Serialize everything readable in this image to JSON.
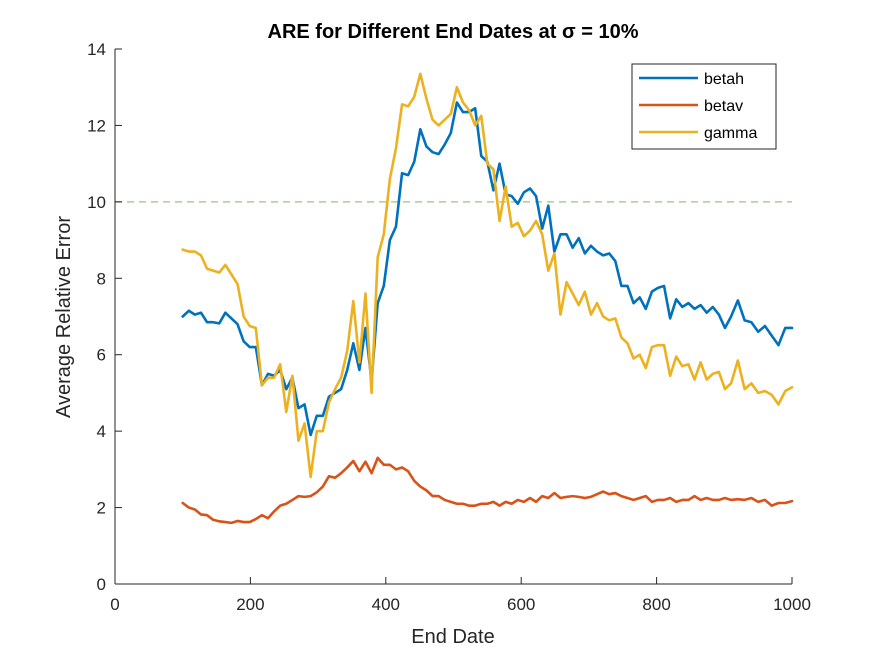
{
  "chart_data": {
    "type": "line",
    "title": "ARE for Different End Dates at σ = 10%",
    "xlabel": "End Date",
    "ylabel": "Average Relative Error",
    "xlim": [
      0,
      1000
    ],
    "ylim": [
      0,
      14
    ],
    "xticks": [
      0,
      200,
      400,
      600,
      800,
      1000
    ],
    "yticks": [
      0,
      2,
      4,
      6,
      8,
      10,
      12,
      14
    ],
    "grid": false,
    "legend_position": "top-right",
    "reference_line": {
      "y": 10,
      "color": "#A9D08E",
      "style": "dashed"
    },
    "x": [
      100,
      110,
      120,
      130,
      140,
      150,
      160,
      170,
      180,
      190,
      200,
      210,
      220,
      230,
      240,
      250,
      260,
      270,
      280,
      290,
      300,
      310,
      320,
      330,
      340,
      350,
      360,
      370,
      380,
      390,
      400,
      410,
      420,
      430,
      440,
      450,
      460,
      470,
      480,
      490,
      500,
      510,
      520,
      530,
      540,
      550,
      560,
      570,
      580,
      590,
      600,
      610,
      620,
      630,
      640,
      650,
      660,
      670,
      680,
      690,
      700,
      710,
      720,
      730,
      740,
      750,
      760,
      770,
      780,
      790,
      800,
      810,
      820,
      830,
      840,
      850,
      860,
      870,
      880,
      890,
      900,
      910,
      920,
      930,
      940,
      950,
      960,
      970,
      980,
      990,
      1000
    ],
    "series": [
      {
        "name": "betah",
        "color": "#0072BD",
        "values": [
          7.0,
          7.15,
          7.05,
          7.1,
          6.85,
          6.85,
          6.82,
          7.1,
          6.95,
          6.8,
          6.35,
          6.2,
          6.2,
          5.2,
          5.5,
          5.45,
          5.6,
          5.1,
          5.4,
          4.6,
          4.7,
          3.9,
          4.4,
          4.4,
          4.9,
          5.0,
          5.1,
          5.6,
          6.3,
          5.6,
          6.7,
          5.3,
          7.35,
          7.8,
          9.0,
          9.35,
          10.75,
          10.7,
          11.05,
          11.9,
          11.45,
          11.3,
          11.25,
          11.5,
          11.8,
          12.6,
          12.35,
          12.35,
          12.45,
          11.2,
          11.05,
          10.3,
          11.0,
          10.2,
          10.15,
          9.95,
          10.25,
          10.35,
          10.15,
          9.3,
          9.9,
          8.7,
          9.15,
          9.15,
          8.8,
          9.05,
          8.65,
          8.85,
          8.7,
          8.6,
          8.65,
          8.45,
          7.8,
          7.8,
          7.35,
          7.5,
          7.2,
          7.65,
          7.75,
          7.8,
          6.95,
          7.45,
          7.25,
          7.35,
          7.2,
          7.3,
          7.1,
          7.25,
          7.05,
          6.7,
          7.0
        ],
        "values_tail": [
          7.42,
          6.9,
          6.85,
          6.6,
          6.75,
          6.5,
          6.25,
          6.7,
          6.7
        ]
      },
      {
        "name": "betav",
        "color": "#D95319",
        "values": [
          2.12,
          2.0,
          1.95,
          1.82,
          1.8,
          1.68,
          1.64,
          1.62,
          1.6,
          1.65,
          1.62,
          1.62,
          1.7,
          1.8,
          1.72,
          1.9,
          2.05,
          2.1,
          2.2,
          2.3,
          2.28,
          2.3,
          2.4,
          2.55,
          2.82,
          2.78,
          2.9,
          3.05,
          3.22,
          2.95,
          3.2,
          2.9,
          3.3,
          3.12,
          3.12,
          3.0,
          3.05,
          2.95,
          2.7,
          2.55,
          2.45,
          2.3,
          2.3,
          2.2,
          2.15,
          2.1,
          2.1,
          2.05,
          2.05,
          2.1,
          2.1,
          2.15,
          2.05,
          2.15,
          2.1,
          2.2,
          2.15,
          2.25,
          2.15,
          2.3,
          2.25,
          2.38,
          2.25,
          2.28,
          2.3,
          2.28,
          2.25,
          2.28,
          2.35,
          2.42,
          2.35,
          2.38,
          2.3,
          2.25,
          2.2,
          2.25,
          2.3,
          2.15,
          2.2,
          2.2,
          2.25,
          2.15,
          2.2,
          2.2,
          2.3,
          2.2,
          2.25,
          2.2,
          2.2,
          2.25,
          2.2
        ],
        "values_tail": [
          2.22,
          2.2,
          2.25,
          2.15,
          2.2,
          2.05,
          2.12,
          2.12,
          2.17
        ]
      },
      {
        "name": "gamma",
        "color": "#EDB120",
        "values": [
          8.75,
          8.7,
          8.7,
          8.6,
          8.25,
          8.2,
          8.15,
          8.35,
          8.1,
          7.85,
          7.0,
          6.75,
          6.7,
          5.2,
          5.4,
          5.4,
          5.75,
          4.5,
          5.45,
          3.75,
          4.2,
          2.8,
          4.0,
          4.0,
          4.75,
          5.1,
          5.4,
          6.1,
          7.4,
          5.8,
          7.6,
          5.0,
          8.55,
          9.15,
          10.6,
          11.4,
          12.55,
          12.5,
          12.75,
          13.35,
          12.7,
          12.15,
          12.0,
          12.15,
          12.3,
          13.0,
          12.6,
          12.4,
          12.0,
          12.25,
          11.0,
          10.85,
          9.5,
          10.4,
          9.35,
          9.45,
          9.1,
          9.25,
          9.5,
          9.15,
          8.2,
          8.65,
          7.05,
          7.9,
          7.6,
          7.3,
          7.65,
          7.05,
          7.35,
          7.0,
          6.9,
          6.95,
          6.45,
          6.3,
          5.9,
          6.0,
          5.65,
          6.2,
          6.25,
          6.25,
          5.45,
          5.95,
          5.7,
          5.75,
          5.35,
          5.8,
          5.35,
          5.5,
          5.55,
          5.1,
          5.25
        ],
        "values_tail": [
          5.85,
          5.1,
          5.25,
          5.0,
          5.05,
          4.95,
          4.7,
          5.05,
          5.15
        ]
      }
    ]
  }
}
